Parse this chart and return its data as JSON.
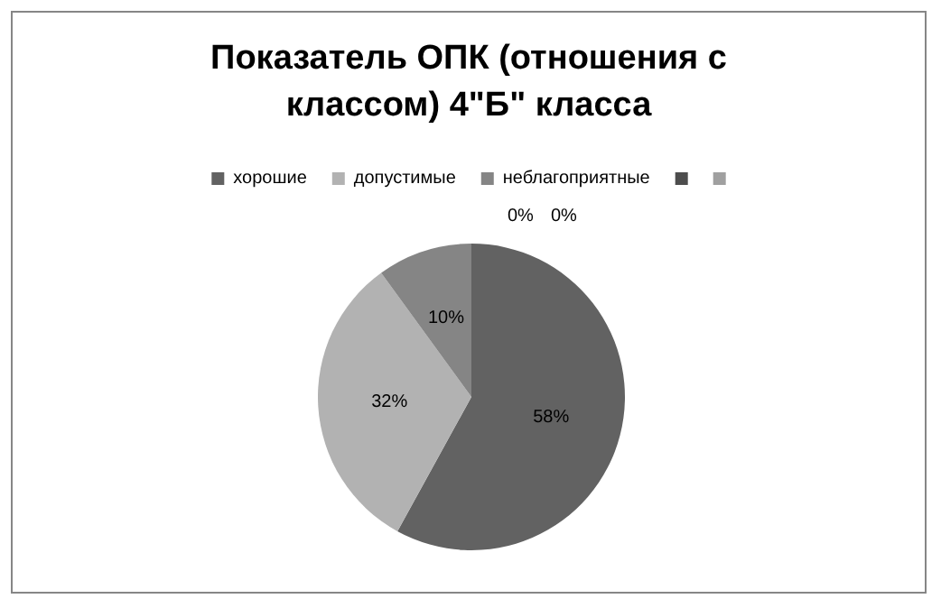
{
  "chart_data": {
    "type": "pie",
    "title": "Показатель ОПК (отношения с классом) 4\"Б\" класса",
    "categories": [
      "хорошие",
      "допустимые",
      "неблагоприятные",
      null,
      null
    ],
    "values": [
      58,
      32,
      10,
      0,
      0
    ],
    "colors": [
      "#626262",
      "#b2b2b2",
      "#858585",
      "#4d4d4d",
      "#a0a0a0"
    ],
    "value_labels": [
      "58%",
      "32%",
      "10%",
      "0%",
      "0%"
    ],
    "legend": "top"
  }
}
